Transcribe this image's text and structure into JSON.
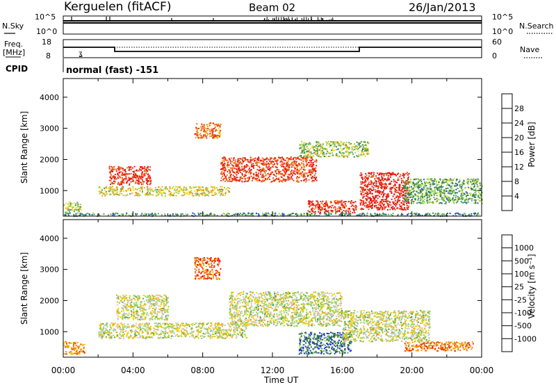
{
  "header": {
    "station": "Kerguelen (fitACF)",
    "beam": "Beam 02",
    "date": "26/Jan/2013"
  },
  "noise_panel": {
    "left_label": "N.Sky",
    "left_ticks": [
      "10^5",
      "10^0"
    ],
    "right_ticks": [
      "10^5",
      "10^0"
    ],
    "right_label": "N.Search"
  },
  "freq_panel": {
    "label_line1": "Freq.",
    "label_line2": "[MHz]",
    "left_ticks": [
      "18",
      "8"
    ],
    "right_ticks": [
      "60",
      "0"
    ],
    "right_label": "Nave"
  },
  "cpid": {
    "label": "CPID",
    "value": "normal (fast) -151"
  },
  "time_axis": {
    "label": "Time UT",
    "ticks": [
      "00:00",
      "04:00",
      "08:00",
      "12:00",
      "16:00",
      "20:00",
      "00:00"
    ]
  },
  "chart_data": [
    {
      "type": "heatmap",
      "panel": "power",
      "ylabel": "Slant Range [km]",
      "yticks": [
        1000,
        2000,
        3000,
        4000
      ],
      "ylim": [
        180,
        4600
      ],
      "xlim_hours": [
        0,
        24
      ],
      "colorbar": {
        "label": "Power [dB]",
        "ticks": [
          "4",
          "8",
          "12",
          "16",
          "20",
          "24",
          "28"
        ],
        "colors": [
          "#1e28e6",
          "#1e4fc8",
          "#2d7d46",
          "#4fa064",
          "#a0d240",
          "#f0dc28",
          "#f5a020",
          "#f07014",
          "#e63c14",
          "#e61414"
        ]
      },
      "bands": [
        {
          "t": [
            0.0,
            1.0
          ],
          "r": [
            300,
            650
          ],
          "level": 0.45
        },
        {
          "t": [
            2.6,
            5.0
          ],
          "r": [
            1200,
            1800
          ],
          "level": 0.9
        },
        {
          "t": [
            2.0,
            9.5
          ],
          "r": [
            850,
            1150
          ],
          "level": 0.55
        },
        {
          "t": [
            7.5,
            9.0
          ],
          "r": [
            2700,
            3200
          ],
          "level": 0.75
        },
        {
          "t": [
            9.0,
            14.5
          ],
          "r": [
            1300,
            2100
          ],
          "level": 0.85
        },
        {
          "t": [
            13.5,
            17.5
          ],
          "r": [
            2100,
            2600
          ],
          "level": 0.45
        },
        {
          "t": [
            14.0,
            16.8
          ],
          "r": [
            300,
            700
          ],
          "level": 0.9
        },
        {
          "t": [
            17.0,
            19.8
          ],
          "r": [
            400,
            1600
          ],
          "level": 0.95
        },
        {
          "t": [
            19.5,
            24.0
          ],
          "r": [
            600,
            1400
          ],
          "level": 0.35
        },
        {
          "t": [
            0.0,
            24.0
          ],
          "r": [
            200,
            300
          ],
          "level": 0.3
        }
      ]
    },
    {
      "type": "heatmap",
      "panel": "velocity",
      "ylabel": "Slant Range [km]",
      "yticks": [
        1000,
        2000,
        3000,
        4000
      ],
      "ylim": [
        180,
        4600
      ],
      "xlim_hours": [
        0,
        24
      ],
      "colorbar": {
        "label": "Velocity [m s⁻¹]",
        "ticks": [
          "1000",
          "500",
          "100",
          "25",
          "-25",
          "-100",
          "-500",
          "-1000"
        ],
        "colors": [
          "#2030c8",
          "#2d6e3c",
          "#4fa050",
          "#8cd24c",
          "#c8c8c8",
          "#f5c800",
          "#f5a000",
          "#f07800",
          "#e63c00",
          "#e61414"
        ]
      },
      "bands": [
        {
          "t": [
            0.0,
            1.2
          ],
          "r": [
            300,
            700
          ],
          "level": 0.7
        },
        {
          "t": [
            2.0,
            10.5
          ],
          "r": [
            800,
            1300
          ],
          "level": 0.45
        },
        {
          "t": [
            3.0,
            6.0
          ],
          "r": [
            1400,
            2200
          ],
          "level": 0.45
        },
        {
          "t": [
            7.5,
            9.0
          ],
          "r": [
            2700,
            3400
          ],
          "level": 0.8
        },
        {
          "t": [
            9.5,
            16.0
          ],
          "r": [
            1200,
            2300
          ],
          "level": 0.45
        },
        {
          "t": [
            13.5,
            16.5
          ],
          "r": [
            300,
            1000
          ],
          "level": 0.15
        },
        {
          "t": [
            16.0,
            21.0
          ],
          "r": [
            700,
            1700
          ],
          "level": 0.45
        },
        {
          "t": [
            19.5,
            23.5
          ],
          "r": [
            400,
            700
          ],
          "level": 0.75
        }
      ]
    }
  ]
}
